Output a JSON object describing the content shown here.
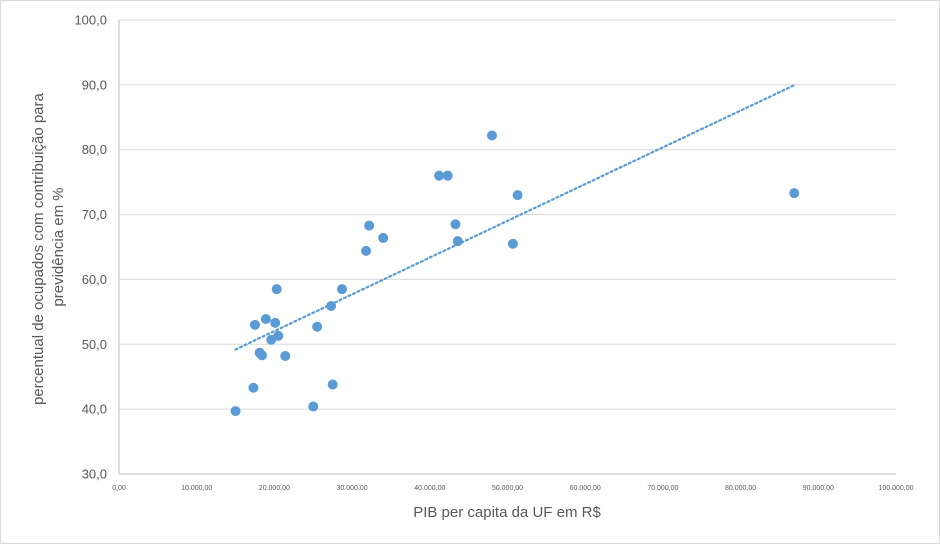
{
  "chart_data": {
    "type": "scatter",
    "title": "",
    "xlabel": "PIB per capita da UF em R$",
    "ylabel_lines": [
      "percentual de ocupados com contribuição para",
      "previdência em %"
    ],
    "xlim": [
      0,
      100000
    ],
    "ylim": [
      30,
      100
    ],
    "x_ticks": [
      0,
      10000,
      20000,
      30000,
      40000,
      50000,
      60000,
      70000,
      80000,
      90000,
      100000
    ],
    "x_tick_labels": [
      "0,00",
      "10.000,00",
      "20.000,00",
      "30.000,00",
      "40.000,00",
      "50.000,00",
      "60.000,00",
      "70.000,00",
      "80.000,00",
      "90.000,00",
      "100.000,00"
    ],
    "y_ticks": [
      30,
      40,
      50,
      60,
      70,
      80,
      90,
      100
    ],
    "y_tick_labels": [
      "30,0",
      "40,0",
      "50,0",
      "60,0",
      "70,0",
      "80,0",
      "90,0",
      "100,0"
    ],
    "grid": "horizontal",
    "legend": "none",
    "marker_color": "#5b9bd5",
    "trendline": {
      "type": "linear",
      "style": "dotted",
      "color": "#5b9bd5",
      "points": [
        [
          15000,
          49.2
        ],
        [
          87000,
          90.0
        ]
      ]
    },
    "series": [
      {
        "points": [
          [
            15000,
            39.7
          ],
          [
            17300,
            43.3
          ],
          [
            17500,
            53.0
          ],
          [
            18100,
            48.7
          ],
          [
            18400,
            48.3
          ],
          [
            18900,
            53.9
          ],
          [
            19600,
            50.7
          ],
          [
            20100,
            53.3
          ],
          [
            20300,
            58.5
          ],
          [
            20500,
            51.3
          ],
          [
            21400,
            48.2
          ],
          [
            25000,
            40.4
          ],
          [
            25500,
            52.7
          ],
          [
            27300,
            55.9
          ],
          [
            27500,
            43.8
          ],
          [
            28700,
            58.5
          ],
          [
            31800,
            64.4
          ],
          [
            32200,
            68.3
          ],
          [
            34000,
            66.4
          ],
          [
            41200,
            76.0
          ],
          [
            42300,
            76.0
          ],
          [
            43300,
            68.5
          ],
          [
            43600,
            65.9
          ],
          [
            48000,
            82.2
          ],
          [
            50700,
            65.5
          ],
          [
            51300,
            73.0
          ],
          [
            86900,
            73.3
          ]
        ]
      }
    ]
  }
}
